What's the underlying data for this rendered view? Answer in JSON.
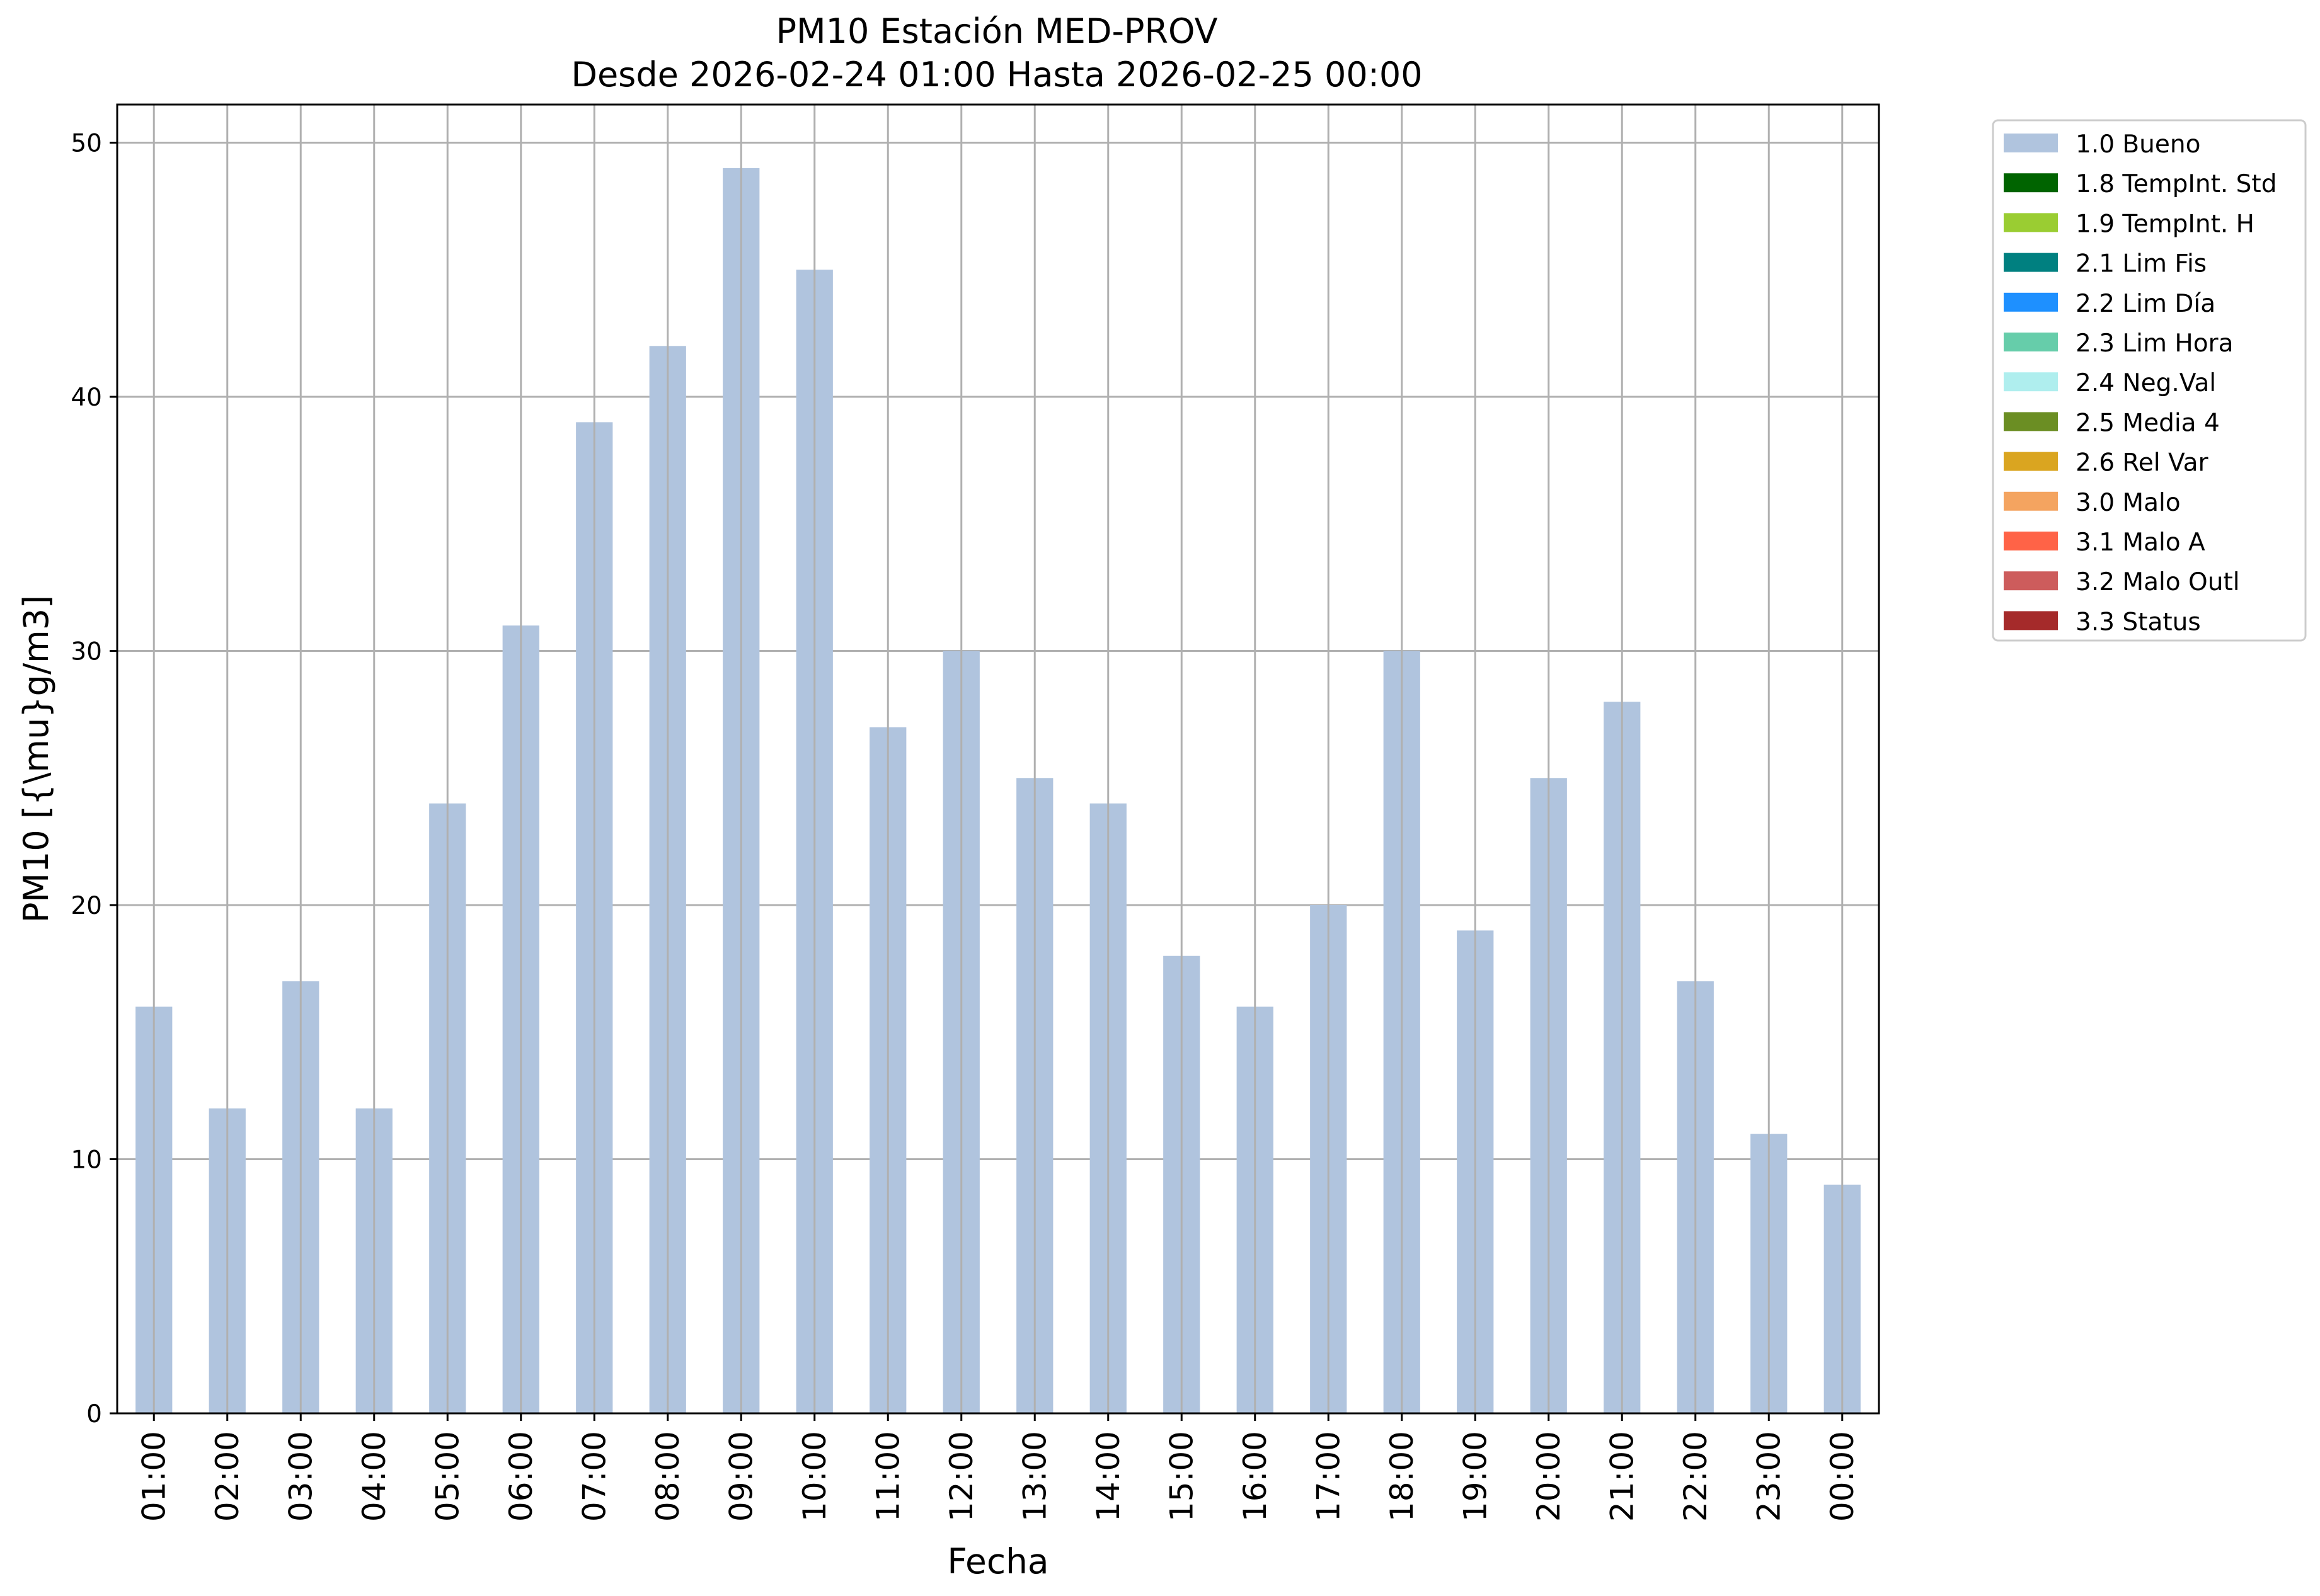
{
  "chart_data": {
    "type": "bar",
    "title": "PM10 Estación MED-PROV",
    "subtitle": "Desde 2026-02-24 01:00 Hasta 2026-02-25 00:00",
    "xlabel": "Fecha",
    "ylabel": "PM10 [{\\mu}g/m3]",
    "ylim": [
      0,
      51.5
    ],
    "yticks": [
      0,
      10,
      20,
      30,
      40,
      50
    ],
    "grid": true,
    "legend_position": "outside-top-right",
    "categories": [
      "01:00",
      "02:00",
      "03:00",
      "04:00",
      "05:00",
      "06:00",
      "07:00",
      "08:00",
      "09:00",
      "10:00",
      "11:00",
      "12:00",
      "13:00",
      "14:00",
      "15:00",
      "16:00",
      "17:00",
      "18:00",
      "19:00",
      "20:00",
      "21:00",
      "22:00",
      "23:00",
      "00:00"
    ],
    "series": [
      {
        "name": "1.0 Bueno",
        "color": "#b0c4de",
        "values": [
          16,
          12,
          17,
          12,
          24,
          31,
          39,
          42,
          49,
          45,
          27,
          30,
          25,
          24,
          18,
          16,
          20,
          30,
          19,
          25,
          28,
          17,
          11,
          9
        ]
      }
    ],
    "legend": [
      {
        "label": "1.0 Bueno",
        "color": "#b0c4de"
      },
      {
        "label": "1.8 TempInt. Std",
        "color": "#006400"
      },
      {
        "label": "1.9 TempInt. H",
        "color": "#9acd32"
      },
      {
        "label": "2.1 Lim Fis",
        "color": "#008080"
      },
      {
        "label": "2.2 Lim Día",
        "color": "#1e90ff"
      },
      {
        "label": "2.3 Lim Hora",
        "color": "#66cdaa"
      },
      {
        "label": "2.4 Neg.Val",
        "color": "#afeeee"
      },
      {
        "label": "2.5 Media 4",
        "color": "#6b8e23"
      },
      {
        "label": "2.6 Rel Var",
        "color": "#daa520"
      },
      {
        "label": "3.0 Malo",
        "color": "#f4a460"
      },
      {
        "label": "3.1 Malo A",
        "color": "#ff6347"
      },
      {
        "label": "3.2 Malo Outl",
        "color": "#cd5c5c"
      },
      {
        "label": "3.3 Status",
        "color": "#a52a2a"
      }
    ]
  }
}
